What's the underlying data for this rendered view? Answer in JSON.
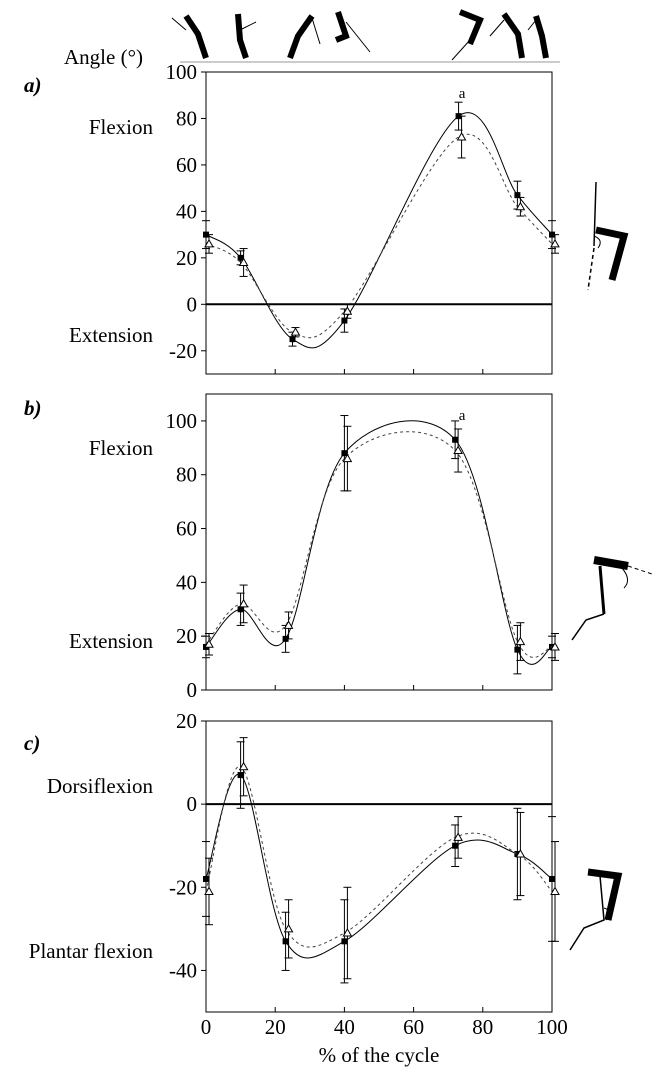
{
  "figure": {
    "y_title": "Angle (°)",
    "x_title": "% of the cycle"
  },
  "chart_data": [
    {
      "type": "line",
      "panel_label": "a)",
      "side_labels": [
        "Flexion",
        "Extension"
      ],
      "significance_label": "a",
      "significance_x": 74,
      "x": [
        0,
        10,
        25,
        40,
        73,
        90,
        100
      ],
      "xlim": [
        0,
        100
      ],
      "ylim": [
        -30,
        100
      ],
      "yticks": [
        -20,
        0,
        20,
        40,
        60,
        80,
        100
      ],
      "zero_line": true,
      "series": [
        {
          "style": "solid",
          "marker": "square",
          "values": [
            30,
            20,
            -15,
            -7,
            81,
            47,
            30
          ],
          "errors": [
            6,
            3,
            3,
            5,
            6,
            6,
            6
          ]
        },
        {
          "style": "dashed",
          "marker": "triangle",
          "values": [
            26,
            18,
            -12,
            -3,
            72,
            42,
            26
          ],
          "errors": [
            4,
            6,
            2,
            3,
            9,
            4,
            4
          ]
        }
      ]
    },
    {
      "type": "line",
      "panel_label": "b)",
      "side_labels": [
        "Flexion",
        "Extension"
      ],
      "significance_label": "a",
      "significance_x": 74,
      "x": [
        0,
        10,
        23,
        40,
        72,
        90,
        100
      ],
      "xlim": [
        0,
        100
      ],
      "ylim": [
        0,
        110
      ],
      "yticks": [
        0,
        20,
        40,
        60,
        80,
        100
      ],
      "zero_line": false,
      "series": [
        {
          "style": "solid",
          "marker": "square",
          "values": [
            16,
            30,
            19,
            88,
            93,
            15,
            16
          ],
          "errors": [
            4,
            6,
            5,
            14,
            7,
            9,
            4
          ]
        },
        {
          "style": "dashed",
          "marker": "triangle",
          "values": [
            17,
            32,
            24,
            86,
            89,
            18,
            16
          ],
          "errors": [
            4,
            7,
            5,
            12,
            8,
            7,
            5
          ]
        }
      ]
    },
    {
      "type": "line",
      "panel_label": "c)",
      "side_labels": [
        "Dorsiflexion",
        "Plantar flexion"
      ],
      "significance_label": "",
      "x": [
        0,
        10,
        23,
        40,
        72,
        90,
        100
      ],
      "xlim": [
        0,
        100
      ],
      "ylim": [
        -50,
        20
      ],
      "yticks": [
        -40,
        -20,
        0,
        20
      ],
      "xticks": [
        0,
        20,
        40,
        60,
        80,
        100
      ],
      "zero_line": true,
      "series": [
        {
          "style": "solid",
          "marker": "square",
          "values": [
            -18,
            7,
            -33,
            -33,
            -10,
            -12,
            -18
          ],
          "errors": [
            9,
            8,
            7,
            10,
            5,
            11,
            15
          ]
        },
        {
          "style": "dashed",
          "marker": "triangle",
          "values": [
            -21,
            9,
            -30,
            -31,
            -8,
            -12,
            -21
          ],
          "errors": [
            8,
            7,
            7,
            11,
            5,
            10,
            12
          ]
        }
      ]
    }
  ]
}
